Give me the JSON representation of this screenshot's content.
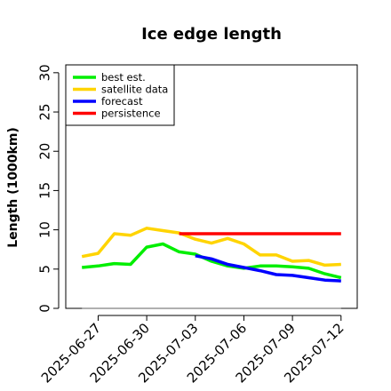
{
  "chart_data": {
    "type": "line",
    "title": "Ice edge length",
    "ylabel": "Length (1000km)",
    "xlabel": "",
    "x_format": "date",
    "x_range": [
      "2025-06-25",
      "2025-07-13"
    ],
    "ylim": [
      0,
      31
    ],
    "y_ticks": [
      0,
      5,
      10,
      15,
      20,
      25,
      30
    ],
    "x_ticks": [
      {
        "date": "2025-06-27",
        "label": "2025-06-27",
        "color": "#000000"
      },
      {
        "date": "2025-06-30",
        "label": "2025-06-30",
        "color": "#000000"
      },
      {
        "date": "2025-07-03",
        "label": "2025-07-03",
        "color": "#2e8b22"
      },
      {
        "date": "2025-07-06",
        "label": "2025-07-06",
        "color": "#000000"
      },
      {
        "date": "2025-07-09",
        "label": "2025-07-09",
        "color": "#000000"
      },
      {
        "date": "2025-07-12",
        "label": "2025-07-12",
        "color": "#000000"
      }
    ],
    "grid": false,
    "legend_position": "top-left",
    "series": [
      {
        "name": "satellite data",
        "color": "#ffd400",
        "points": [
          [
            "2025-06-26",
            6.6
          ],
          [
            "2025-06-27",
            7.0
          ],
          [
            "2025-06-28",
            9.5
          ],
          [
            "2025-06-29",
            9.3
          ],
          [
            "2025-06-30",
            10.2
          ],
          [
            "2025-07-01",
            9.9
          ],
          [
            "2025-07-02",
            9.6
          ],
          [
            "2025-07-03",
            8.8
          ],
          [
            "2025-07-04",
            8.3
          ],
          [
            "2025-07-05",
            8.9
          ],
          [
            "2025-07-06",
            8.2
          ],
          [
            "2025-07-07",
            6.8
          ],
          [
            "2025-07-08",
            6.8
          ],
          [
            "2025-07-09",
            6.0
          ],
          [
            "2025-07-10",
            6.1
          ],
          [
            "2025-07-11",
            5.5
          ],
          [
            "2025-07-12",
            5.6
          ]
        ]
      },
      {
        "name": "best est.",
        "color": "#00ee00",
        "points": [
          [
            "2025-06-26",
            5.2
          ],
          [
            "2025-06-27",
            5.4
          ],
          [
            "2025-06-28",
            5.7
          ],
          [
            "2025-06-29",
            5.6
          ],
          [
            "2025-06-30",
            7.8
          ],
          [
            "2025-07-01",
            8.2
          ],
          [
            "2025-07-02",
            7.2
          ],
          [
            "2025-07-03",
            6.9
          ],
          [
            "2025-07-04",
            6.0
          ],
          [
            "2025-07-05",
            5.4
          ],
          [
            "2025-07-06",
            5.1
          ],
          [
            "2025-07-07",
            5.4
          ],
          [
            "2025-07-08",
            5.4
          ],
          [
            "2025-07-09",
            5.3
          ],
          [
            "2025-07-10",
            5.1
          ],
          [
            "2025-07-11",
            4.4
          ],
          [
            "2025-07-12",
            3.9
          ]
        ]
      },
      {
        "name": "persistence",
        "color": "#ff0000",
        "points": [
          [
            "2025-07-02",
            9.5
          ],
          [
            "2025-07-12",
            9.5
          ]
        ]
      },
      {
        "name": "forecast",
        "color": "#0000ff",
        "points": [
          [
            "2025-07-03",
            6.7
          ],
          [
            "2025-07-04",
            6.3
          ],
          [
            "2025-07-05",
            5.6
          ],
          [
            "2025-07-06",
            5.2
          ],
          [
            "2025-07-07",
            4.8
          ],
          [
            "2025-07-08",
            4.3
          ],
          [
            "2025-07-09",
            4.2
          ],
          [
            "2025-07-10",
            3.9
          ],
          [
            "2025-07-11",
            3.6
          ],
          [
            "2025-07-12",
            3.5
          ]
        ]
      },
      {
        "name": "",
        "color": "#808080",
        "points": [
          [
            "2025-06-26",
            0
          ],
          [
            "2025-07-12",
            0
          ]
        ]
      }
    ],
    "legend": [
      {
        "label": "best est.",
        "color": "#00ee00"
      },
      {
        "label": "satellite data",
        "color": "#ffd400"
      },
      {
        "label": "forecast",
        "color": "#0000ff"
      },
      {
        "label": "persistence",
        "color": "#ff0000"
      }
    ]
  }
}
